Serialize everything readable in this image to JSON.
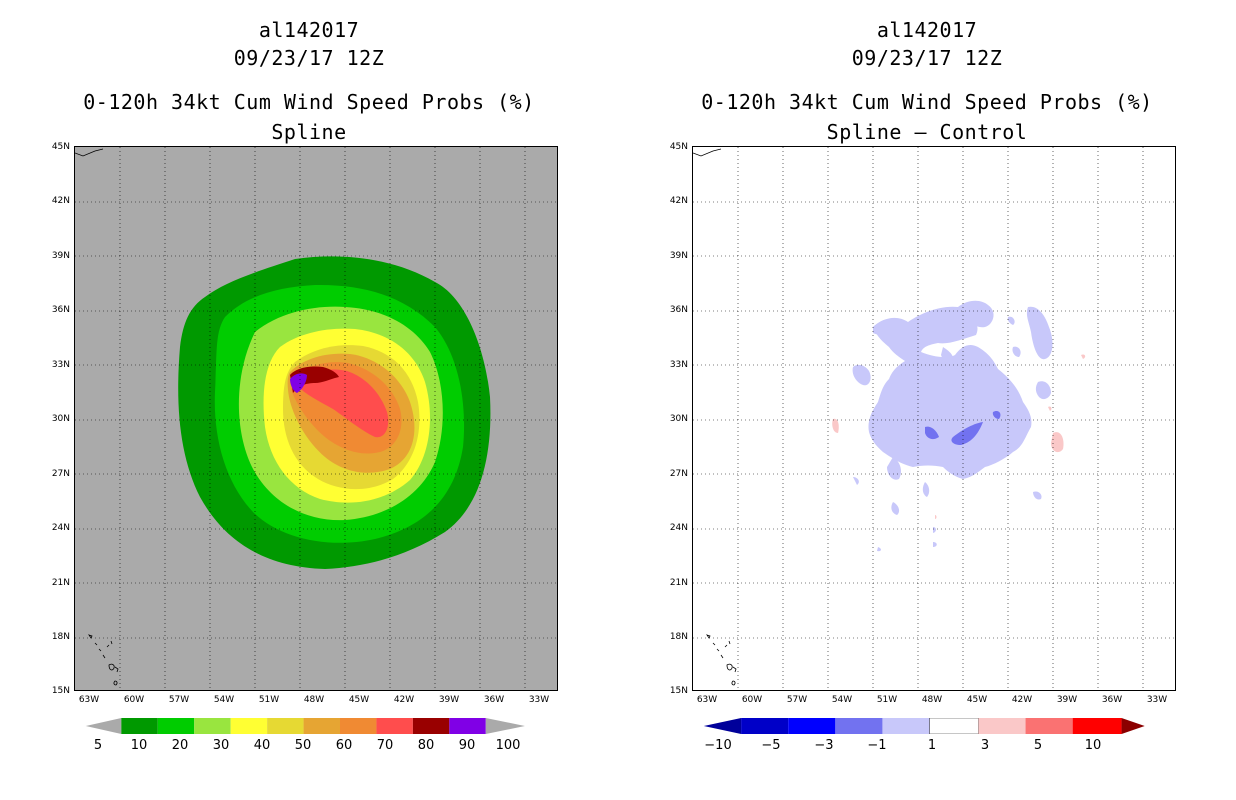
{
  "left": {
    "title1": "al142017",
    "title2": "09/23/17 12Z",
    "title3": "0-120h 34kt Cum Wind Speed Probs (%)",
    "title4": "Spline",
    "background_color": "#aaaaaa",
    "colorbar": {
      "labels": [
        "5",
        "10",
        "20",
        "30",
        "40",
        "50",
        "60",
        "70",
        "80",
        "90",
        "100"
      ],
      "colors": [
        "#009900",
        "#00cc00",
        "#99e53f",
        "#ffff33",
        "#e6d933",
        "#e6a533",
        "#f08a33",
        "#ff4d4d",
        "#990000",
        "#8000e6"
      ]
    }
  },
  "right": {
    "title1": "al142017",
    "title2": "09/23/17 12Z",
    "title3": "0-120h 34kt Cum Wind Speed Probs (%)",
    "title4": "Spline – Control",
    "colorbar": {
      "labels": [
        "−10",
        "−5",
        "−3",
        "−1",
        "1",
        "3",
        "5",
        "10"
      ],
      "colors": [
        "#0000c8",
        "#0000ff",
        "#7272f0",
        "#c8c8fa",
        "#ffffff",
        "#fac8c8",
        "#fa7272",
        "#ff0000"
      ],
      "end_colors": [
        "#00009a",
        "#8b0000"
      ]
    }
  },
  "axes": {
    "lat_labels": [
      "45N",
      "42N",
      "39N",
      "36N",
      "33N",
      "30N",
      "27N",
      "24N",
      "21N",
      "18N",
      "15N"
    ],
    "lon_labels": [
      "63W",
      "60W",
      "57W",
      "54W",
      "51W",
      "48W",
      "45W",
      "42W",
      "39W",
      "36W",
      "33W"
    ]
  }
}
